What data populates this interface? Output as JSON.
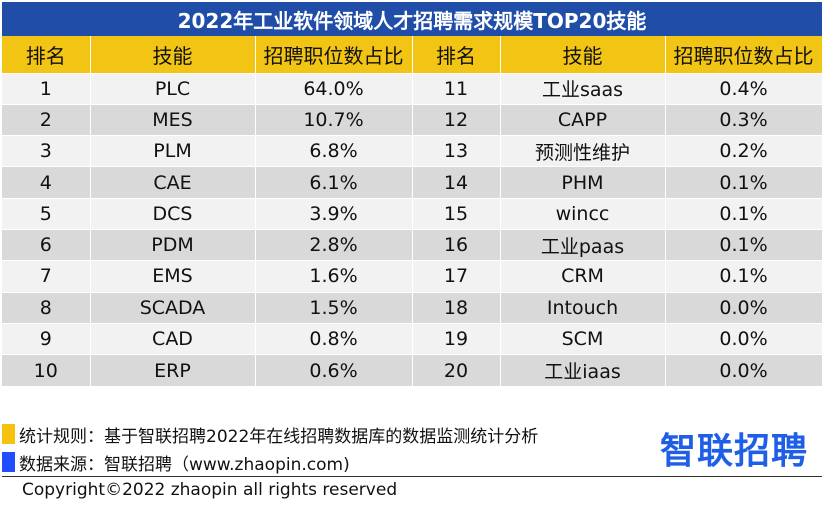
{
  "title": "2022年工业软件领域人才招聘需求规模TOP20技能",
  "headers": {
    "rank": "排名",
    "skill": "技能",
    "share": "招聘职位数占比"
  },
  "rows": [
    {
      "left": {
        "rank": "1",
        "skill": "PLC",
        "share": "64.0%"
      },
      "right": {
        "rank": "11",
        "skill": "工业saas",
        "share": "0.4%"
      }
    },
    {
      "left": {
        "rank": "2",
        "skill": "MES",
        "share": "10.7%"
      },
      "right": {
        "rank": "12",
        "skill": "CAPP",
        "share": "0.3%"
      }
    },
    {
      "left": {
        "rank": "3",
        "skill": "PLM",
        "share": "6.8%"
      },
      "right": {
        "rank": "13",
        "skill": "预测性维护",
        "share": "0.2%"
      }
    },
    {
      "left": {
        "rank": "4",
        "skill": "CAE",
        "share": "6.1%"
      },
      "right": {
        "rank": "14",
        "skill": "PHM",
        "share": "0.1%"
      }
    },
    {
      "left": {
        "rank": "5",
        "skill": "DCS",
        "share": "3.9%"
      },
      "right": {
        "rank": "15",
        "skill": "wincc",
        "share": "0.1%"
      }
    },
    {
      "left": {
        "rank": "6",
        "skill": "PDM",
        "share": "2.8%"
      },
      "right": {
        "rank": "16",
        "skill": "工业paas",
        "share": "0.1%"
      }
    },
    {
      "left": {
        "rank": "7",
        "skill": "EMS",
        "share": "1.6%"
      },
      "right": {
        "rank": "17",
        "skill": "CRM",
        "share": "0.1%"
      }
    },
    {
      "left": {
        "rank": "8",
        "skill": "SCADA",
        "share": "1.5%"
      },
      "right": {
        "rank": "18",
        "skill": "Intouch",
        "share": "0.0%"
      }
    },
    {
      "left": {
        "rank": "9",
        "skill": "CAD",
        "share": "0.8%"
      },
      "right": {
        "rank": "19",
        "skill": "SCM",
        "share": "0.0%"
      }
    },
    {
      "left": {
        "rank": "10",
        "skill": "ERP",
        "share": "0.6%"
      },
      "right": {
        "rank": "20",
        "skill": "工业iaas",
        "share": "0.0%"
      }
    }
  ],
  "notes": {
    "rule": "统计规则：基于智联招聘2022年在线招聘数据库的数据监测统计分析",
    "source": "数据来源：智联招聘（www.zhaopin.com)"
  },
  "logo": "智联招聘",
  "copyright": "Copyright©2022 zhaopin all rights reserved",
  "colors": {
    "title_bg": "#1F4DA8",
    "header_bg": "#F2C414",
    "row_light": "#F2F2F2",
    "row_dark": "#D9D9D9",
    "logo": "#1F5FE8",
    "note_yellow": "#F7C20F",
    "note_blue": "#1F4DFF"
  }
}
